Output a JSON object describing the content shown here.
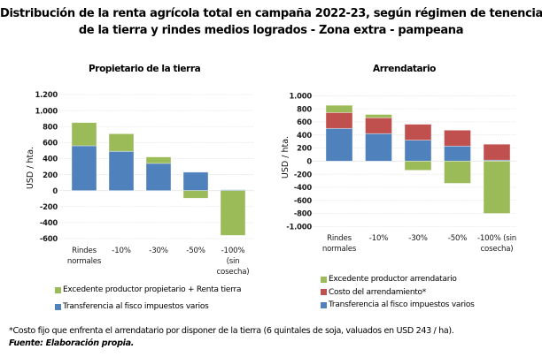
{
  "title": {
    "line1": "Distribución de la renta agrícola total en campaña 2022-23, según régimen de tenencia",
    "line2": "de la tierra y rindes medios logrados - Zona extra - pampeana"
  },
  "colors": {
    "green": "#9BBB59",
    "red": "#C0504D",
    "blue": "#4F81BD",
    "grid": "#E6E6E6"
  },
  "chart_data": [
    {
      "type": "bar",
      "stacked": true,
      "title": "Propietario de la tierra",
      "xlabel": "",
      "ylabel": "USD / hta.",
      "ylim": [
        -600,
        1200
      ],
      "yticks": [
        1200,
        1000,
        800,
        600,
        400,
        200,
        0,
        -200,
        -400,
        -600
      ],
      "ytick_labels": [
        "1.200",
        "1.000",
        "800",
        "600",
        "400",
        "200",
        "0",
        "-200",
        "-400",
        "-600"
      ],
      "grid": true,
      "categories": [
        [
          "Rindes",
          "normales"
        ],
        [
          "-10%"
        ],
        [
          "-30%"
        ],
        [
          "-50%"
        ],
        [
          "-100%",
          "(sin",
          "cosecha)"
        ]
      ],
      "series": [
        {
          "name": "Transferencia al fisco impuestos varios",
          "color_key": "blue",
          "values": [
            560,
            490,
            340,
            230,
            10
          ]
        },
        {
          "name": "Excedente productor propietario + Renta tierra",
          "color_key": "green",
          "values": [
            290,
            220,
            80,
            -95,
            -560
          ]
        }
      ],
      "legend": {
        "placement": "bottom",
        "items": [
          {
            "label": "Excedente productor propietario + Renta tierra",
            "color_key": "green"
          },
          {
            "label": "Transferencia al fisco impuestos varios",
            "color_key": "blue"
          }
        ]
      }
    },
    {
      "type": "bar",
      "stacked": true,
      "title": "Arrendatario",
      "xlabel": "",
      "ylabel": "USD / hta.",
      "ylim": [
        -1000,
        1000
      ],
      "yticks": [
        1000,
        800,
        600,
        400,
        200,
        0,
        -200,
        -400,
        -600,
        -800,
        -1000
      ],
      "ytick_labels": [
        "1.000",
        "800",
        "600",
        "400",
        "200",
        "0",
        "-200",
        "-400",
        "-600",
        "-800",
        "-1.000"
      ],
      "grid": true,
      "categories": [
        [
          "Rindes",
          "normales"
        ],
        [
          "-10%"
        ],
        [
          "-30%"
        ],
        [
          "-50%"
        ],
        [
          "-100% (sin",
          "cosecha)"
        ]
      ],
      "series": [
        {
          "name": "Transferencia al fisco impuestos varios",
          "color_key": "blue",
          "values": [
            500,
            420,
            320,
            230,
            15
          ]
        },
        {
          "name": "Costo del arrendamiento*",
          "color_key": "red",
          "values": [
            243,
            243,
            243,
            243,
            243
          ]
        },
        {
          "name": "Excedente productor arrendatario",
          "color_key": "green",
          "values": [
            110,
            50,
            -140,
            -340,
            -800
          ]
        }
      ],
      "legend": {
        "placement": "bottom",
        "items": [
          {
            "label": "Excedente productor arrendatario",
            "color_key": "green"
          },
          {
            "label": "Costo del arrendamiento*",
            "color_key": "red"
          },
          {
            "label": "Transferencia al fisco impuestos varios",
            "color_key": "blue"
          }
        ]
      }
    }
  ],
  "footnote": "*Costo fijo que enfrenta el arrendatario por disponer de la tierra (6 quintales de soja, valuados en USD 243 / ha).",
  "source": "Fuente: Elaboración propia."
}
